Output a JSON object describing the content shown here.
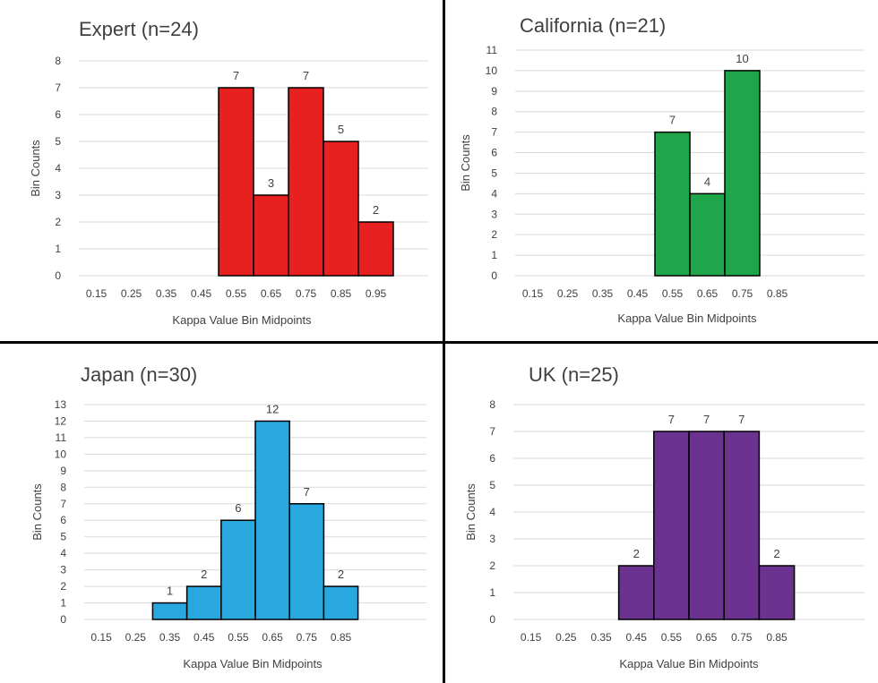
{
  "colors": {
    "grid": "#d9d9d9",
    "text": "#404040",
    "title": "#404040",
    "bar_edge": "#000000"
  },
  "chart_data": [
    {
      "type": "bar",
      "title": "Expert (n=24)",
      "xlabel": "Kappa Value Bin Midpoints",
      "ylabel": "Bin Counts",
      "categories": [
        "0.15",
        "0.25",
        "0.35",
        "0.45",
        "0.55",
        "0.65",
        "0.75",
        "0.85",
        "0.95"
      ],
      "values": [
        0,
        0,
        0,
        0,
        7,
        3,
        7,
        5,
        2
      ],
      "data_labels": [
        "",
        "",
        "",
        "",
        "7",
        "3",
        "7",
        "5",
        "2"
      ],
      "ylim": [
        0,
        8
      ],
      "yticks": [
        0,
        1,
        2,
        3,
        4,
        5,
        6,
        7,
        8
      ],
      "color": "#e8201f",
      "grid": true
    },
    {
      "type": "bar",
      "title": "California (n=21)",
      "xlabel": "Kappa Value Bin Midpoints",
      "ylabel": "Bin Counts",
      "categories": [
        "0.15",
        "0.25",
        "0.35",
        "0.45",
        "0.55",
        "0.65",
        "0.75",
        "0.85"
      ],
      "values": [
        0,
        0,
        0,
        0,
        7,
        4,
        10,
        0
      ],
      "data_labels": [
        "",
        "",
        "",
        "",
        "7",
        "4",
        "10",
        ""
      ],
      "ylim": [
        0,
        11
      ],
      "yticks": [
        0,
        1,
        2,
        3,
        4,
        5,
        6,
        7,
        8,
        9,
        10,
        11
      ],
      "color": "#1fa64a",
      "grid": true
    },
    {
      "type": "bar",
      "title": "Japan (n=30)",
      "xlabel": "Kappa Value Bin Midpoints",
      "ylabel": "Bin Counts",
      "categories": [
        "0.15",
        "0.25",
        "0.35",
        "0.45",
        "0.55",
        "0.65",
        "0.75",
        "0.85"
      ],
      "values": [
        0,
        0,
        1,
        2,
        6,
        12,
        7,
        2
      ],
      "data_labels": [
        "",
        "",
        "1",
        "2",
        "6",
        "12",
        "7",
        "2"
      ],
      "ylim": [
        0,
        13
      ],
      "yticks": [
        0,
        1,
        2,
        3,
        4,
        5,
        6,
        7,
        8,
        9,
        10,
        11,
        12,
        13
      ],
      "color": "#29a8e0",
      "grid": true
    },
    {
      "type": "bar",
      "title": "UK (n=25)",
      "xlabel": "Kappa Value Bin Midpoints",
      "ylabel": "Bin Counts",
      "categories": [
        "0.15",
        "0.25",
        "0.35",
        "0.45",
        "0.55",
        "0.65",
        "0.75",
        "0.85"
      ],
      "values": [
        0,
        0,
        0,
        2,
        7,
        7,
        7,
        2
      ],
      "data_labels": [
        "",
        "",
        "",
        "2",
        "7",
        "7",
        "7",
        "2"
      ],
      "ylim": [
        0,
        8
      ],
      "yticks": [
        0,
        1,
        2,
        3,
        4,
        5,
        6,
        7,
        8
      ],
      "color": "#6b3290",
      "grid": true
    }
  ]
}
